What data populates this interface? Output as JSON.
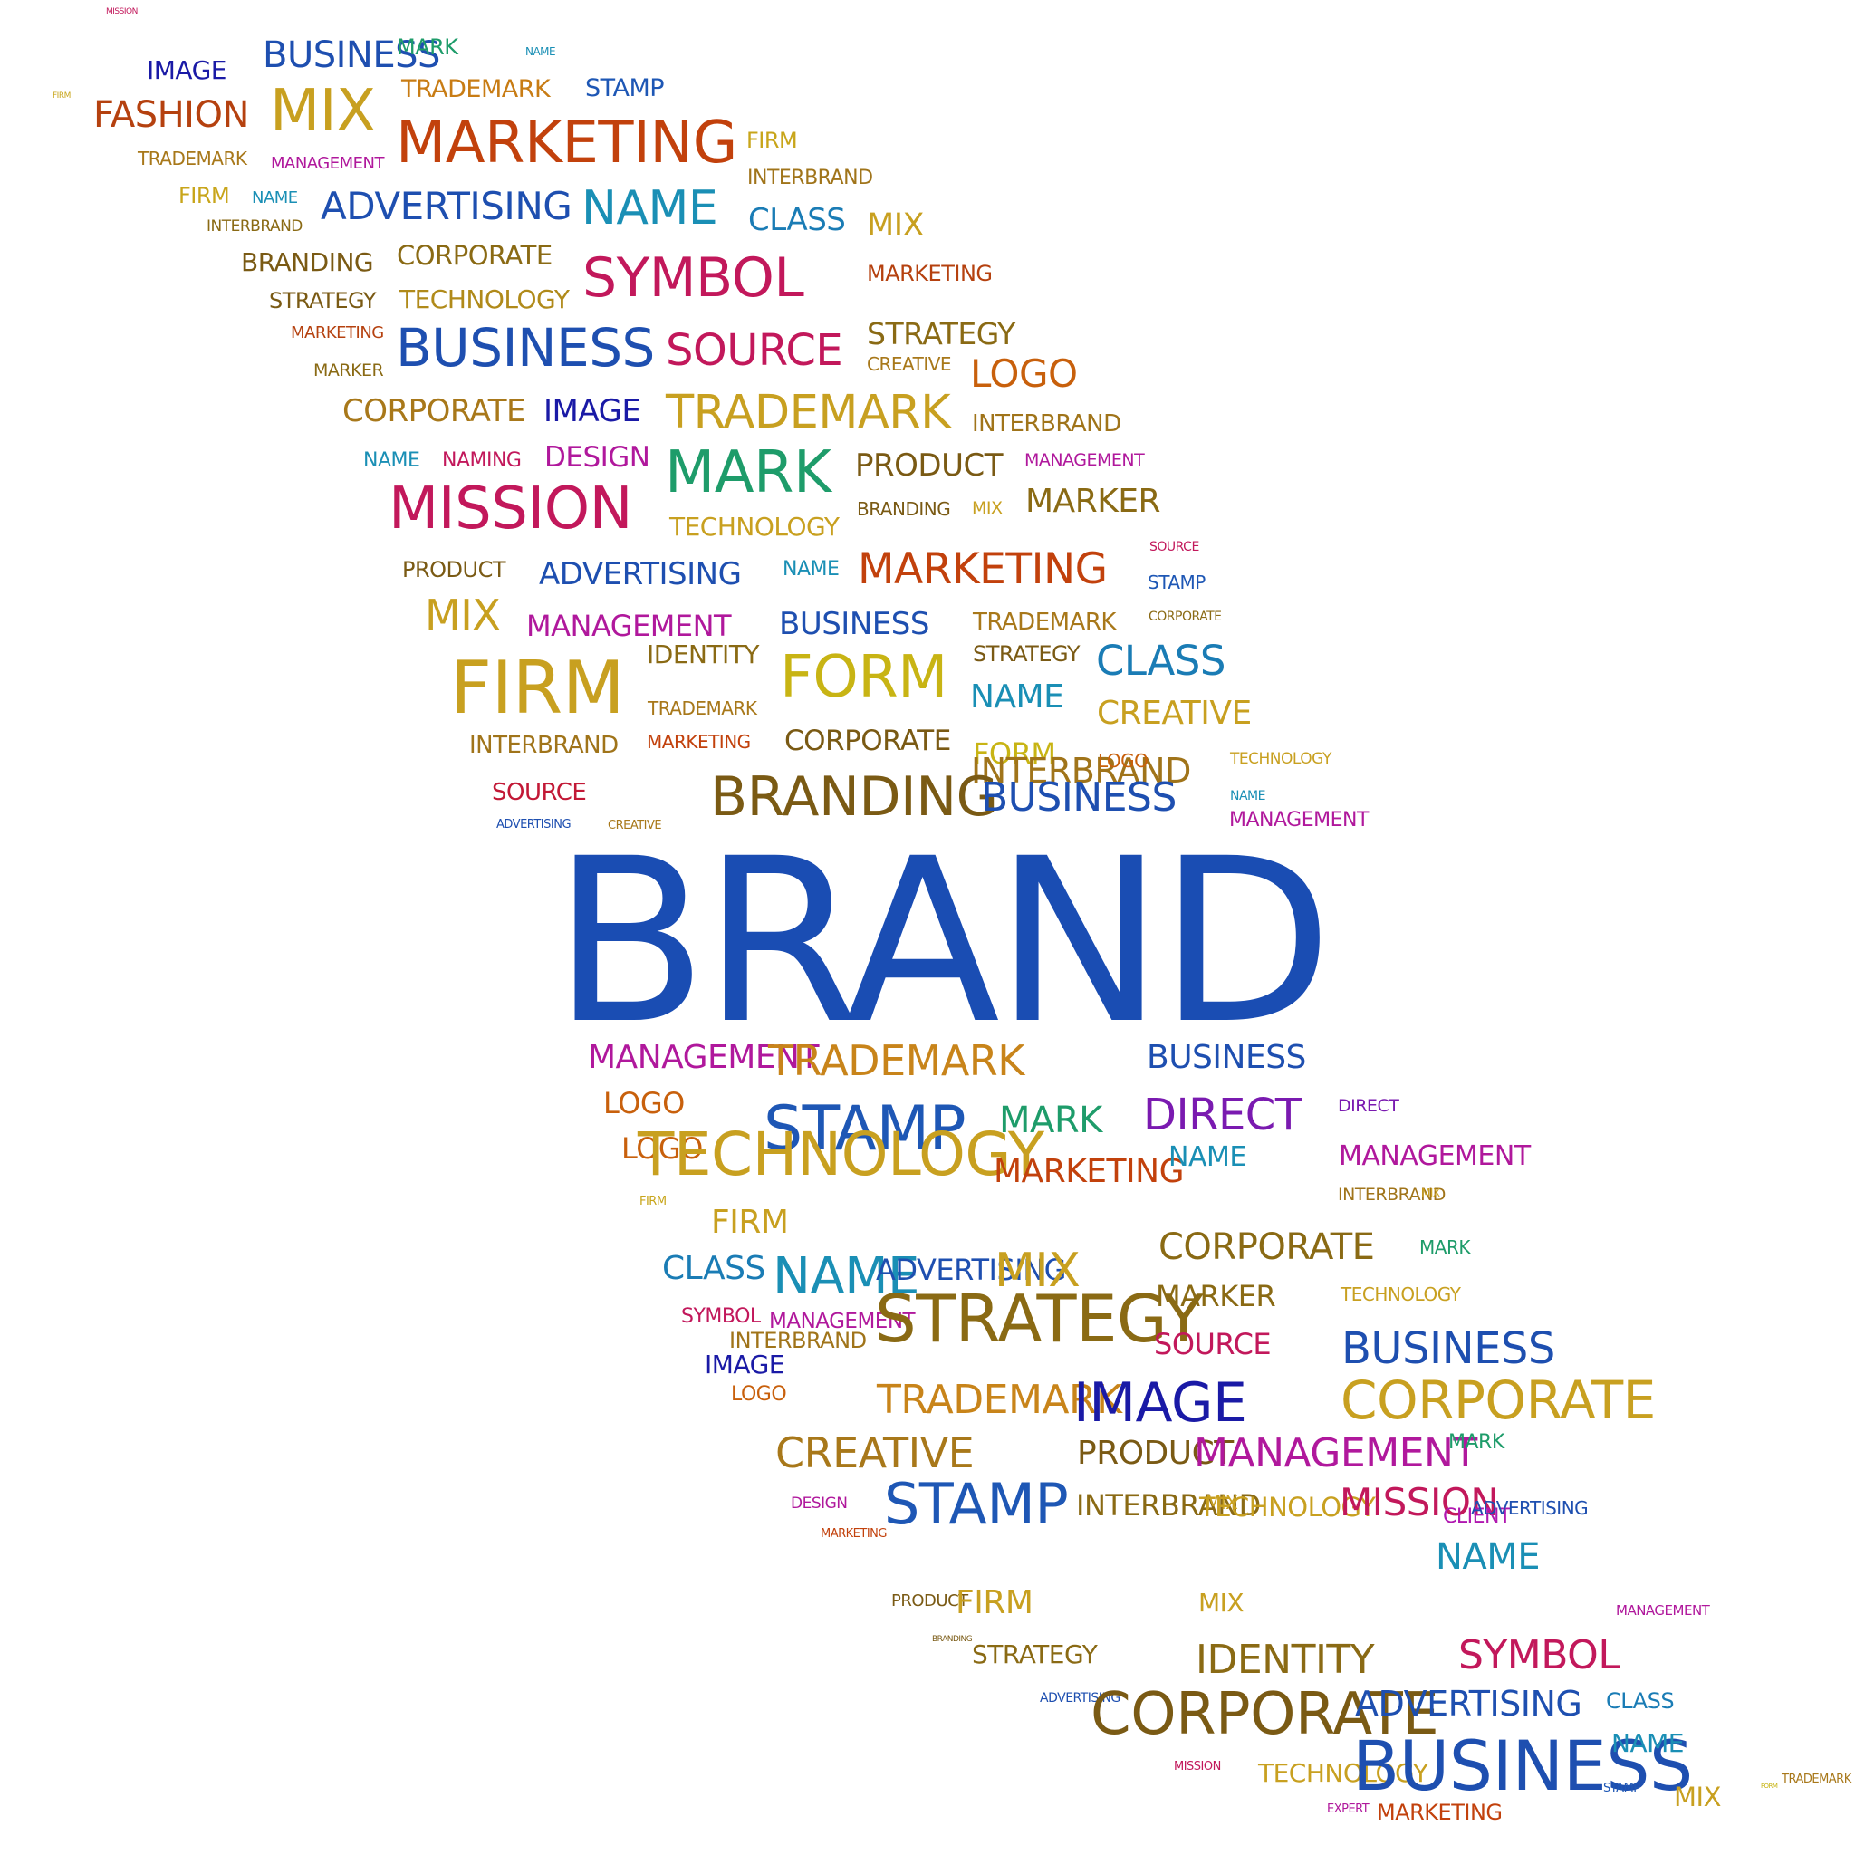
{
  "title": {
    "text": "BRAND",
    "color": "#1a4db3"
  },
  "words": [
    {
      "text": "MISSION",
      "color": "#c2185b"
    },
    {
      "text": "IMAGE",
      "color": "#1a1aa6"
    },
    {
      "text": "BUSINESS",
      "color": "#1e4fb0"
    },
    {
      "text": "MARK",
      "color": "#1e9c6a"
    },
    {
      "text": "NAME",
      "color": "#1a8fb5"
    },
    {
      "text": "FIRM",
      "color": "#c8a51a"
    },
    {
      "text": "FASHION",
      "color": "#b5410f"
    },
    {
      "text": "MIX",
      "color": "#c8a020"
    },
    {
      "text": "TRADEMARK",
      "color": "#c87c14"
    },
    {
      "text": "STAMP",
      "color": "#1e57b5"
    },
    {
      "text": "TRADEMARK",
      "color": "#a8781a"
    },
    {
      "text": "MANAGEMENT",
      "color": "#b0189c"
    },
    {
      "text": "MARKETING",
      "color": "#c2410c"
    },
    {
      "text": "FIRM",
      "color": "#c8a51a"
    },
    {
      "text": "INTERBRAND",
      "color": "#a0741a"
    },
    {
      "text": "FIRM",
      "color": "#c8a51a"
    },
    {
      "text": "NAME",
      "color": "#1a8fb5"
    },
    {
      "text": "ADVERTISING",
      "color": "#1e4fb0"
    },
    {
      "text": "NAME",
      "color": "#1a8fb5"
    },
    {
      "text": "CLASS",
      "color": "#1a7cb5"
    },
    {
      "text": "INTERBRAND",
      "color": "#8a6a14"
    },
    {
      "text": "MIX",
      "color": "#c8a020"
    },
    {
      "text": "BRANDING",
      "color": "#7a5a14"
    },
    {
      "text": "CORPORATE",
      "color": "#8a6a14"
    },
    {
      "text": "SYMBOL",
      "color": "#c2185b"
    },
    {
      "text": "MARKETING",
      "color": "#b5410f"
    },
    {
      "text": "STRATEGY",
      "color": "#7a5a14"
    },
    {
      "text": "TECHNOLOGY",
      "color": "#b08a1a"
    },
    {
      "text": "STRATEGY",
      "color": "#8a6a14"
    },
    {
      "text": "MARKETING",
      "color": "#b5410f"
    },
    {
      "text": "BUSINESS",
      "color": "#1e4fb0"
    },
    {
      "text": "SOURCE",
      "color": "#c2185b"
    },
    {
      "text": "CREATIVE",
      "color": "#a8781a"
    },
    {
      "text": "MARKER",
      "color": "#8a6a14"
    },
    {
      "text": "LOGO",
      "color": "#c8600c"
    },
    {
      "text": "CORPORATE",
      "color": "#a8781a"
    },
    {
      "text": "IMAGE",
      "color": "#1a1aa6"
    },
    {
      "text": "TRADEMARK",
      "color": "#c8a020"
    },
    {
      "text": "INTERBRAND",
      "color": "#a0741a"
    },
    {
      "text": "NAME",
      "color": "#1a8fb5"
    },
    {
      "text": "NAMING",
      "color": "#c2185b"
    },
    {
      "text": "DESIGN",
      "color": "#b0189c"
    },
    {
      "text": "MARK",
      "color": "#1e9c6a"
    },
    {
      "text": "PRODUCT",
      "color": "#7a5a14"
    },
    {
      "text": "MANAGEMENT",
      "color": "#b0189c"
    },
    {
      "text": "BRANDING",
      "color": "#7a5a14"
    },
    {
      "text": "MIX",
      "color": "#c8a020"
    },
    {
      "text": "MARKER",
      "color": "#8a6a14"
    },
    {
      "text": "MISSION",
      "color": "#c2185b"
    },
    {
      "text": "TECHNOLOGY",
      "color": "#c8a020"
    },
    {
      "text": "PRODUCT",
      "color": "#7a5a14"
    },
    {
      "text": "ADVERTISING",
      "color": "#1e4fb0"
    },
    {
      "text": "NAME",
      "color": "#1a8fb5"
    },
    {
      "text": "MARKETING",
      "color": "#c2410c"
    },
    {
      "text": "SOURCE",
      "color": "#c2185b"
    },
    {
      "text": "STAMP",
      "color": "#1e57b5"
    },
    {
      "text": "MIX",
      "color": "#c8a020"
    },
    {
      "text": "MANAGEMENT",
      "color": "#b0189c"
    },
    {
      "text": "BUSINESS",
      "color": "#1e4fb0"
    },
    {
      "text": "TRADEMARK",
      "color": "#a8781a"
    },
    {
      "text": "CORPORATE",
      "color": "#8a6a14"
    },
    {
      "text": "FIRM",
      "color": "#c8a020"
    },
    {
      "text": "IDENTITY",
      "color": "#8a6a14"
    },
    {
      "text": "FORM",
      "color": "#c8b414"
    },
    {
      "text": "STRATEGY",
      "color": "#7a5a14"
    },
    {
      "text": "CLASS",
      "color": "#1a7cb5"
    },
    {
      "text": "TRADEMARK",
      "color": "#a8781a"
    },
    {
      "text": "NAME",
      "color": "#1a8fb5"
    },
    {
      "text": "CREATIVE",
      "color": "#c8a020"
    },
    {
      "text": "INTERBRAND",
      "color": "#a0741a"
    },
    {
      "text": "MARKETING",
      "color": "#c2410c"
    },
    {
      "text": "CORPORATE",
      "color": "#7a5a14"
    },
    {
      "text": "FORM",
      "color": "#c8b414"
    },
    {
      "text": "INTERBRAND",
      "color": "#a0741a"
    },
    {
      "text": "LOGO",
      "color": "#c8600c"
    },
    {
      "text": "TECHNOLOGY",
      "color": "#c8a020"
    },
    {
      "text": "SOURCE",
      "color": "#c21836"
    },
    {
      "text": "BRANDING",
      "color": "#7a5a14"
    },
    {
      "text": "BUSINESS",
      "color": "#1e4fb0"
    },
    {
      "text": "NAME",
      "color": "#1a8fb5"
    },
    {
      "text": "MANAGEMENT",
      "color": "#b0189c"
    },
    {
      "text": "ADVERTISING",
      "color": "#1e4fb0"
    },
    {
      "text": "CREATIVE",
      "color": "#a8781a"
    },
    {
      "text": "MANAGEMENT",
      "color": "#b0189c"
    },
    {
      "text": "TRADEMARK",
      "color": "#c8841a"
    },
    {
      "text": "BUSINESS",
      "color": "#1e4fb0"
    },
    {
      "text": "LOGO",
      "color": "#c8600c"
    },
    {
      "text": "STAMP",
      "color": "#1e57b5"
    },
    {
      "text": "MARK",
      "color": "#1e9c6a"
    },
    {
      "text": "DIRECT",
      "color": "#7a1ab0"
    },
    {
      "text": "DIRECT",
      "color": "#7a1ab0"
    },
    {
      "text": "LOGO",
      "color": "#c8600c"
    },
    {
      "text": "TECHNOLOGY",
      "color": "#c8a020"
    },
    {
      "text": "MARKETING",
      "color": "#c2410c"
    },
    {
      "text": "NAME",
      "color": "#1a8fb5"
    },
    {
      "text": "MANAGEMENT",
      "color": "#b0189c"
    },
    {
      "text": "INTERBRAND",
      "color": "#a0741a"
    },
    {
      "text": "FIRM",
      "color": "#c8a51a"
    },
    {
      "text": "FIRM",
      "color": "#c8a020"
    },
    {
      "text": "MIX",
      "color": "#c8a020"
    },
    {
      "text": "CLASS",
      "color": "#1a7cb5"
    },
    {
      "text": "NAME",
      "color": "#1a8fb5"
    },
    {
      "text": "ADVERTISING",
      "color": "#1e4fb0"
    },
    {
      "text": "MIX",
      "color": "#c8a020"
    },
    {
      "text": "CORPORATE",
      "color": "#8a6a14"
    },
    {
      "text": "MARK",
      "color": "#1e9c6a"
    },
    {
      "text": "MARKER",
      "color": "#8a6a14"
    },
    {
      "text": "SYMBOL",
      "color": "#c2185b"
    },
    {
      "text": "MANAGEMENT",
      "color": "#b0189c"
    },
    {
      "text": "STRATEGY",
      "color": "#8a6a14"
    },
    {
      "text": "TECHNOLOGY",
      "color": "#c8a020"
    },
    {
      "text": "IMAGE",
      "color": "#1a1aa6"
    },
    {
      "text": "INTERBRAND",
      "color": "#a0741a"
    },
    {
      "text": "SOURCE",
      "color": "#c2185b"
    },
    {
      "text": "BUSINESS",
      "color": "#1e4fb0"
    },
    {
      "text": "LOGO",
      "color": "#c8600c"
    },
    {
      "text": "TRADEMARK",
      "color": "#c8841a"
    },
    {
      "text": "IMAGE",
      "color": "#1a1aa6"
    },
    {
      "text": "CORPORATE",
      "color": "#c8a020"
    },
    {
      "text": "CREATIVE",
      "color": "#a8781a"
    },
    {
      "text": "PRODUCT",
      "color": "#7a5a14"
    },
    {
      "text": "MANAGEMENT",
      "color": "#b0189c"
    },
    {
      "text": "MARK",
      "color": "#1e9c6a"
    },
    {
      "text": "DESIGN",
      "color": "#b0189c"
    },
    {
      "text": "INTERBRAND",
      "color": "#8a6a14"
    },
    {
      "text": "MIX",
      "color": "#c8a020"
    },
    {
      "text": "MARKETING",
      "color": "#c2410c"
    },
    {
      "text": "STAMP",
      "color": "#1e57b5"
    },
    {
      "text": "TECHNOLOGY",
      "color": "#c8a020"
    },
    {
      "text": "MISSION",
      "color": "#c2185b"
    },
    {
      "text": "CLIENT",
      "color": "#b018b0"
    },
    {
      "text": "NAME",
      "color": "#1a8fb5"
    },
    {
      "text": "ADVERTISING",
      "color": "#1e4fb0"
    },
    {
      "text": "PRODUCT",
      "color": "#7a5a14"
    },
    {
      "text": "FIRM",
      "color": "#c8a020"
    },
    {
      "text": "MIX",
      "color": "#c8a020"
    },
    {
      "text": "MANAGEMENT",
      "color": "#b0189c"
    },
    {
      "text": "BRANDING",
      "color": "#7a5a14"
    },
    {
      "text": "STRATEGY",
      "color": "#8a6a14"
    },
    {
      "text": "IDENTITY",
      "color": "#8a6a14"
    },
    {
      "text": "SYMBOL",
      "color": "#c2185b"
    },
    {
      "text": "ADVERTISING",
      "color": "#1e4fb0"
    },
    {
      "text": "CORPORATE",
      "color": "#7a5a14"
    },
    {
      "text": "ADVERTISING",
      "color": "#1e4fb0"
    },
    {
      "text": "CLASS",
      "color": "#1a7cb5"
    },
    {
      "text": "MISSION",
      "color": "#c2185b"
    },
    {
      "text": "TECHNOLOGY",
      "color": "#c8a020"
    },
    {
      "text": "BUSINESS",
      "color": "#1e4fb0"
    },
    {
      "text": "NAME",
      "color": "#1a8fb5"
    },
    {
      "text": "STAMP",
      "color": "#1e57b5"
    },
    {
      "text": "MIX",
      "color": "#c8a020"
    },
    {
      "text": "FORM",
      "color": "#c8b414"
    },
    {
      "text": "TRADEMARK",
      "color": "#a8781a"
    },
    {
      "text": "EXPERT",
      "color": "#b0189c"
    },
    {
      "text": "MARKETING",
      "color": "#c2410c"
    }
  ]
}
